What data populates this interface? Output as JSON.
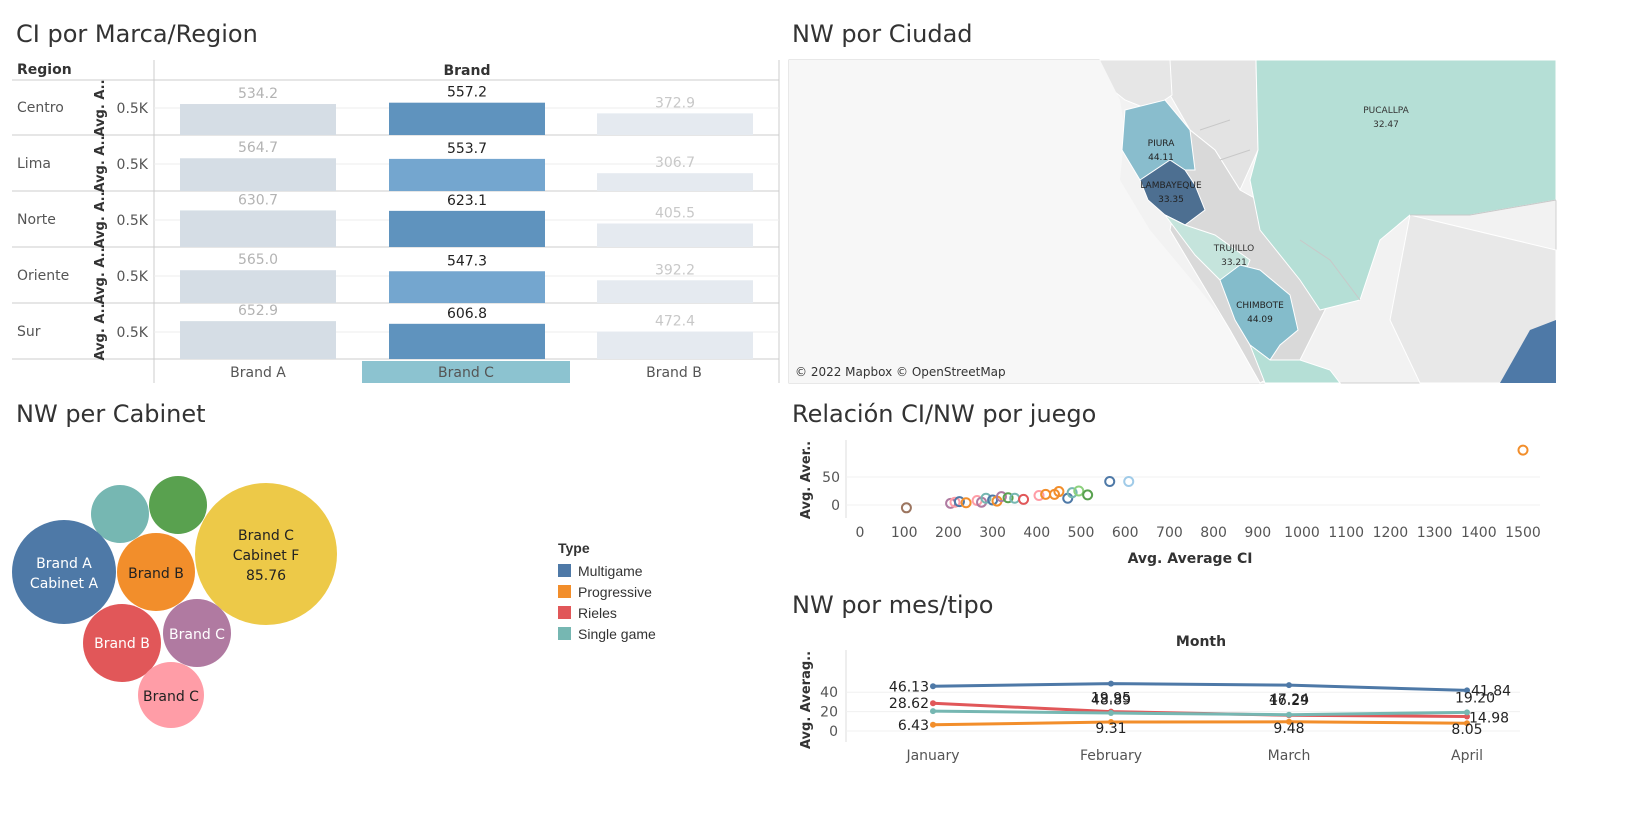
{
  "titles": {
    "ci_marca_region": "CI por Marca/Region",
    "nw_ciudad": "NW por Ciudad",
    "nw_cabinet": "NW per Cabinet",
    "relacion": "Relación CI/NW por juego",
    "nw_mes": "NW por mes/tipo"
  },
  "colors": {
    "multigame": "#4e79a7",
    "progressive": "#f28e2b",
    "rieles": "#e15759",
    "single_game": "#76b7b2"
  },
  "map": {
    "attribution": "© 2022 Mapbox © OpenStreetMap",
    "cities": [
      {
        "name": "PUCALLPA",
        "value": "32.47"
      },
      {
        "name": "PIURA",
        "value": "44.11"
      },
      {
        "name": "LAMBAYEQUE",
        "value": "33.35"
      },
      {
        "name": "TRUJILLO",
        "value": "33.21"
      },
      {
        "name": "CHIMBOTE",
        "value": "44.09"
      }
    ]
  },
  "legend": {
    "title": "Type",
    "items": [
      "Multigame",
      "Progressive",
      "Rieles",
      "Single game"
    ]
  },
  "chart_data": [
    {
      "type": "bar",
      "title": "CI por Marca/Region",
      "row_header": "Region",
      "column_header": "Brand",
      "ylabel": "Avg. A..",
      "tick_label": "0.5K",
      "categories": [
        "Brand A",
        "Brand C",
        "Brand B"
      ],
      "highlighted_category": "Brand C",
      "rows": [
        {
          "region": "Centro",
          "values": [
            534.2,
            557.2,
            372.9
          ]
        },
        {
          "region": "Lima",
          "values": [
            564.7,
            553.7,
            306.7
          ]
        },
        {
          "region": "Norte",
          "values": [
            630.7,
            623.1,
            405.5
          ]
        },
        {
          "region": "Oriente",
          "values": [
            565.0,
            547.3,
            392.2
          ]
        },
        {
          "region": "Sur",
          "values": [
            652.9,
            606.8,
            472.4
          ]
        }
      ]
    },
    {
      "type": "bubble",
      "title": "NW per Cabinet",
      "bubbles": [
        {
          "label": [
            "Brand A",
            "Cabinet A"
          ],
          "type": "Multigame",
          "value": null
        },
        {
          "label": [
            "Brand B"
          ],
          "type": "Progressive",
          "value": null
        },
        {
          "label": [
            "Brand C",
            "Cabinet F",
            "85.76"
          ],
          "type": "Progressive2",
          "value": 85.76
        },
        {
          "label": [],
          "type": "Single game",
          "value": null
        },
        {
          "label": [],
          "type": "Green",
          "value": null
        },
        {
          "label": [
            "Brand B"
          ],
          "type": "Rieles",
          "value": null
        },
        {
          "label": [
            "Brand C"
          ],
          "type": "Purple",
          "value": null
        },
        {
          "label": [
            "Brand C"
          ],
          "type": "Pink",
          "value": null
        }
      ]
    },
    {
      "type": "scatter",
      "title": "Relación CI/NW por juego",
      "xlabel": "Avg. Average CI",
      "ylabel": "Avg. Aver..",
      "xlim": [
        0,
        1550
      ],
      "xticks": [
        0,
        100,
        200,
        300,
        400,
        500,
        600,
        700,
        800,
        900,
        1000,
        1100,
        1200,
        1300,
        1400,
        1500
      ],
      "yticks": [
        0,
        50
      ],
      "points": [
        {
          "x": 105,
          "y": -5,
          "color": "#9c755f"
        },
        {
          "x": 205,
          "y": 3,
          "color": "#b07aa1"
        },
        {
          "x": 215,
          "y": 5,
          "color": "#ff9da7"
        },
        {
          "x": 225,
          "y": 6,
          "color": "#4e79a7"
        },
        {
          "x": 240,
          "y": 4,
          "color": "#f28e2b"
        },
        {
          "x": 265,
          "y": 8,
          "color": "#ff9da7"
        },
        {
          "x": 275,
          "y": 5,
          "color": "#b07aa1"
        },
        {
          "x": 285,
          "y": 12,
          "color": "#76b7b2"
        },
        {
          "x": 300,
          "y": 9,
          "color": "#4e79a7"
        },
        {
          "x": 310,
          "y": 7,
          "color": "#f28e2b"
        },
        {
          "x": 320,
          "y": 15,
          "color": "#b07aa1"
        },
        {
          "x": 335,
          "y": 13,
          "color": "#59a14f"
        },
        {
          "x": 350,
          "y": 12,
          "color": "#76b7b2"
        },
        {
          "x": 370,
          "y": 10,
          "color": "#e15759"
        },
        {
          "x": 405,
          "y": 17,
          "color": "#ff9da7"
        },
        {
          "x": 420,
          "y": 19,
          "color": "#f28e2b"
        },
        {
          "x": 440,
          "y": 19,
          "color": "#f28e2b"
        },
        {
          "x": 450,
          "y": 24,
          "color": "#f28e2b"
        },
        {
          "x": 470,
          "y": 12,
          "color": "#4e79a7"
        },
        {
          "x": 480,
          "y": 22,
          "color": "#76b7b2"
        },
        {
          "x": 495,
          "y": 25,
          "color": "#8cd17d"
        },
        {
          "x": 515,
          "y": 18,
          "color": "#59a14f"
        },
        {
          "x": 565,
          "y": 42,
          "color": "#4e79a7"
        },
        {
          "x": 608,
          "y": 42,
          "color": "#a0cbe8"
        },
        {
          "x": 1500,
          "y": 98,
          "color": "#f28e2b"
        }
      ]
    },
    {
      "type": "line",
      "title": "NW por mes/tipo",
      "xlabel": "Month",
      "ylabel": "Avg. Averag..",
      "categories": [
        "January",
        "February",
        "March",
        "April"
      ],
      "yticks": [
        0,
        20,
        40
      ],
      "series": [
        {
          "name": "Multigame",
          "values": [
            46.13,
            48.89,
            47.24,
            41.84
          ],
          "labels": [
            "46.13",
            "48.89",
            "47.24",
            "41.84"
          ]
        },
        {
          "name": "Rieles",
          "values": [
            28.62,
            19.95,
            16.29,
            14.98
          ],
          "labels": [
            "28.62",
            "19.95",
            "16.29",
            "14.98"
          ]
        },
        {
          "name": "Single game",
          "values": [
            20.5,
            18.5,
            16.8,
            19.2
          ],
          "labels": [
            "",
            "",
            "",
            "19.20"
          ]
        },
        {
          "name": "Progressive",
          "values": [
            6.43,
            9.31,
            9.48,
            8.05
          ],
          "labels": [
            "6.43",
            "9.31",
            "9.48",
            "8.05"
          ]
        }
      ]
    }
  ]
}
